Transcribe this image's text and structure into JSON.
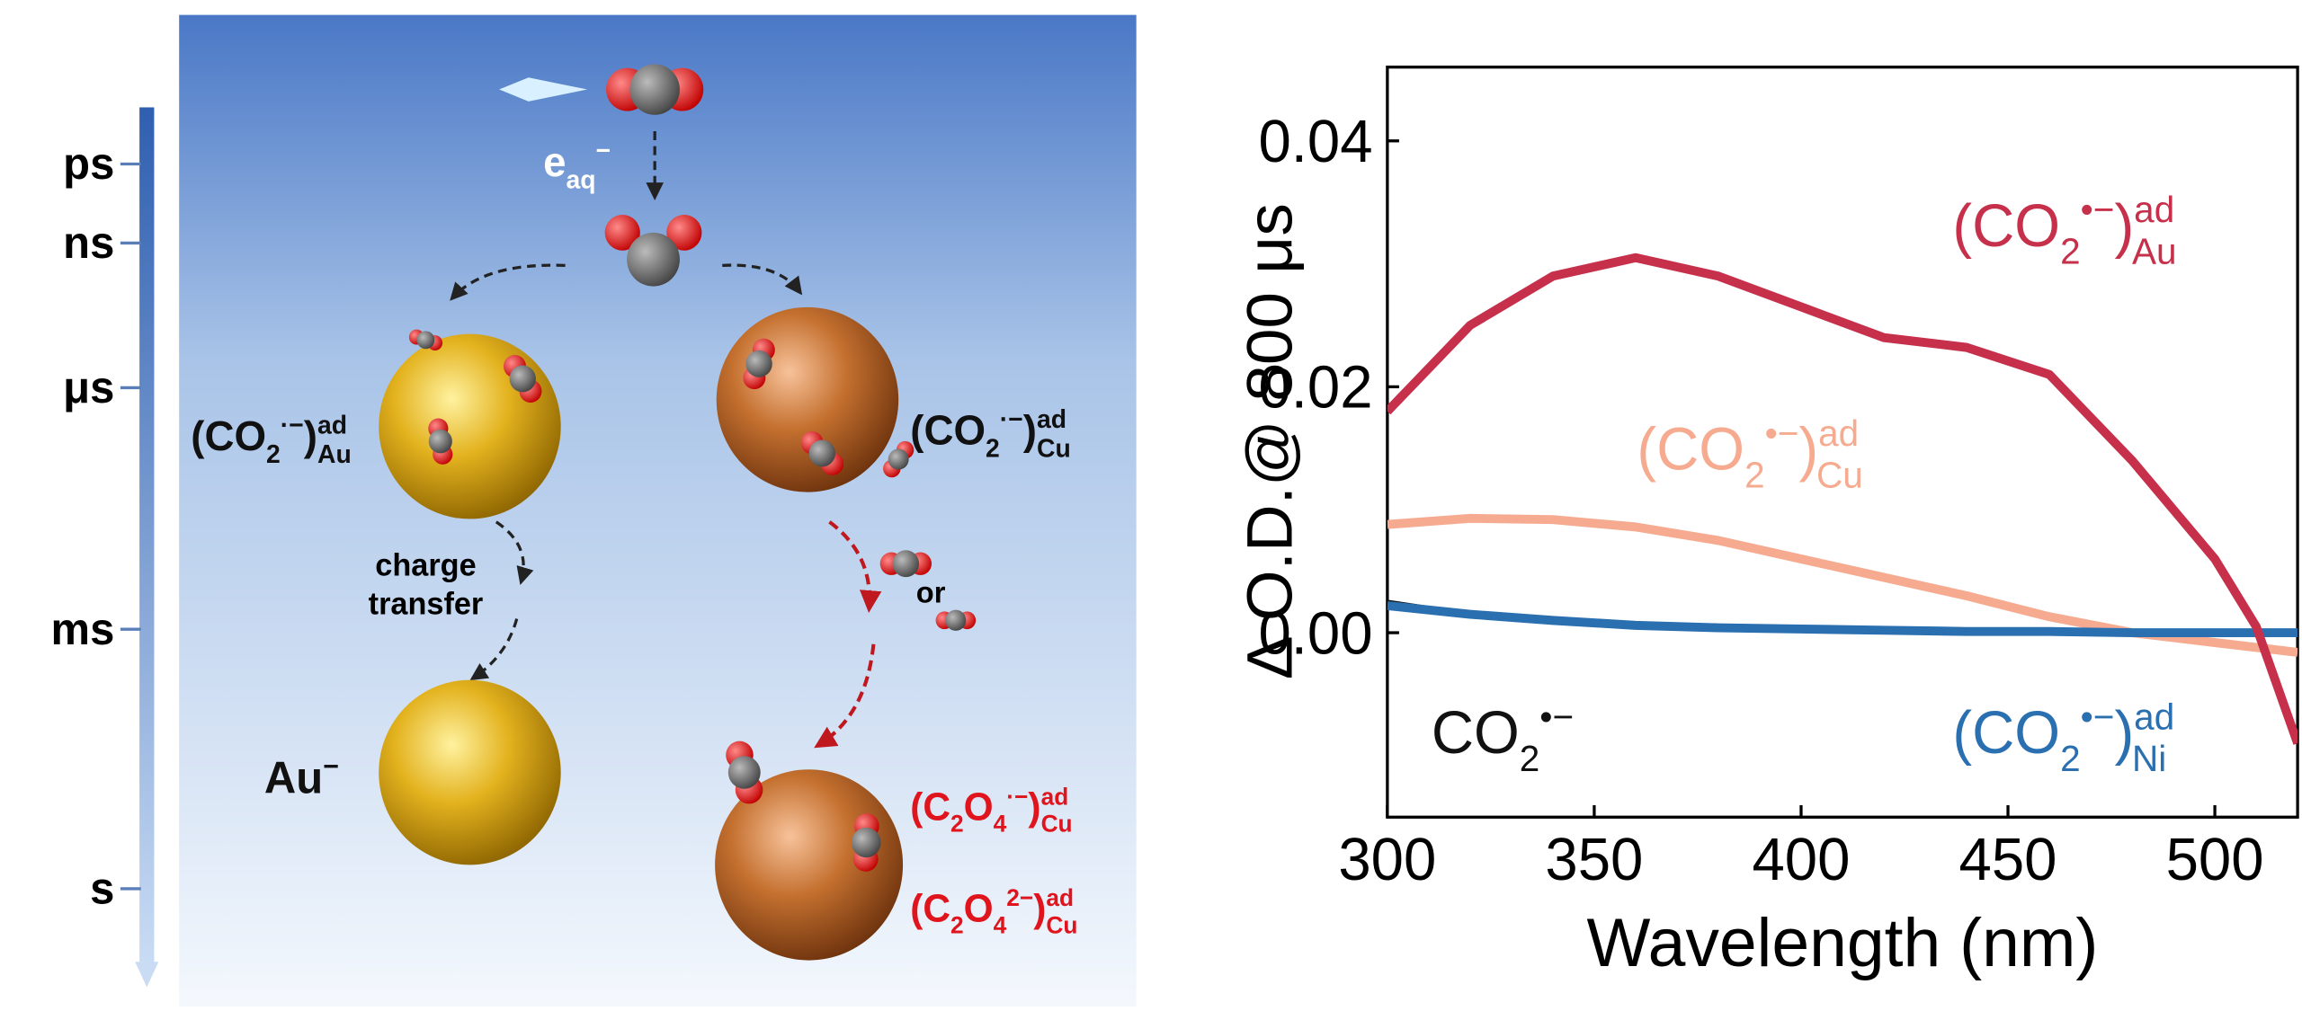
{
  "diagram": {
    "timescale": [
      "ps",
      "ns",
      "μs",
      "ms",
      "s"
    ],
    "electron": [
      [
        "e",
        ""
      ],
      [
        "aq",
        "sub"
      ],
      [
        "−",
        "sup"
      ]
    ],
    "au_ads": [
      [
        "(CO",
        ""
      ],
      [
        "2",
        "sub"
      ],
      [
        "·−",
        "sup"
      ],
      [
        ")",
        ""
      ],
      [
        "ad",
        "sup"
      ],
      [
        "Au",
        "sub"
      ]
    ],
    "cu_ads": [
      [
        "(CO",
        ""
      ],
      [
        "2",
        "sub"
      ],
      [
        "·−",
        "sup"
      ],
      [
        ")",
        ""
      ],
      [
        "ad",
        "sup"
      ],
      [
        "Cu",
        "sub"
      ]
    ],
    "charge_transfer": [
      "charge",
      "transfer"
    ],
    "or": "or",
    "au_minus": [
      [
        "Au",
        ""
      ],
      [
        "−",
        "sup"
      ]
    ],
    "c2o4_rad": [
      [
        "(C",
        ""
      ],
      [
        "2",
        "sub"
      ],
      [
        "O",
        ""
      ],
      [
        "4",
        "sub"
      ],
      [
        "·−",
        "sup"
      ],
      [
        ")",
        ""
      ],
      [
        "ad",
        "sup"
      ],
      [
        "Cu",
        "sub"
      ]
    ],
    "c2o4_di": [
      [
        "(C",
        ""
      ],
      [
        "2",
        "sub"
      ],
      [
        "O",
        ""
      ],
      [
        "4",
        "sub"
      ],
      [
        "2−",
        "sup"
      ],
      [
        ")",
        ""
      ],
      [
        "ad",
        "sup"
      ],
      [
        "Cu",
        "sub"
      ]
    ]
  },
  "chart_data": {
    "type": "line",
    "xlabel": "Wavelength (nm)",
    "ylabel": "Δ O.D.@ 800 μs",
    "xlim": [
      300,
      520
    ],
    "ylim": [
      -0.015,
      0.046
    ],
    "xticks": [
      300,
      350,
      400,
      450,
      500
    ],
    "yticks": [
      {
        "value": 0,
        "label": "0.00"
      },
      0.02,
      0.04
    ],
    "x": [
      300,
      320,
      340,
      360,
      380,
      400,
      420,
      440,
      460,
      480,
      500,
      510,
      520
    ],
    "series": [
      {
        "label": [
          [
            "(CO",
            ""
          ],
          [
            "2",
            "sub"
          ],
          [
            "•−",
            "sup"
          ],
          [
            ")",
            ""
          ],
          [
            "ad",
            "sup"
          ],
          [
            "Au",
            "sub"
          ]
        ],
        "color": "#c6304b",
        "values": [
          0.018,
          0.025,
          0.029,
          0.0305,
          0.029,
          0.0265,
          0.024,
          0.0232,
          0.021,
          0.014,
          0.006,
          0.0005,
          -0.009
        ]
      },
      {
        "label": [
          [
            "(CO",
            ""
          ],
          [
            "2",
            "sub"
          ],
          [
            "•−",
            "sup"
          ],
          [
            ")",
            ""
          ],
          [
            "ad",
            "sup"
          ],
          [
            "Cu",
            "sub"
          ]
        ],
        "color": "#f6ab90",
        "values": [
          0.0088,
          0.0093,
          0.0092,
          0.0086,
          0.0075,
          0.006,
          0.0045,
          0.003,
          0.0013,
          0.0,
          -0.0008,
          -0.0012,
          -0.0016
        ]
      },
      {
        "label": [
          [
            "CO",
            ""
          ],
          [
            "2",
            "sub"
          ],
          [
            "•−",
            "sup"
          ]
        ],
        "color": "#111111",
        "values": [
          0.0025,
          0.0015,
          0.001,
          0.0006,
          0.0004,
          0.0003,
          0.0002,
          0.0002,
          0.0001,
          0.0001,
          0.0,
          0.0,
          0.0
        ]
      },
      {
        "label": [
          [
            "(CO",
            ""
          ],
          [
            "2",
            "sub"
          ],
          [
            "•−",
            "sup"
          ],
          [
            ")",
            ""
          ],
          [
            "ad",
            "sup"
          ],
          [
            "Ni",
            "sub"
          ]
        ],
        "color": "#2a6fb0",
        "values": [
          0.0022,
          0.0015,
          0.001,
          0.0006,
          0.0004,
          0.0003,
          0.0002,
          0.0001,
          0.0001,
          0.0,
          0.0,
          0.0,
          0.0
        ]
      }
    ]
  }
}
